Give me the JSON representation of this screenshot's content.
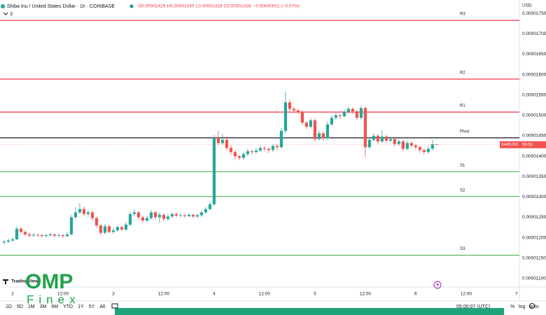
{
  "chart_data": {
    "type": "candlestick",
    "title": "Shiba Inu / United States Dollar · 1h · COINBASE",
    "ohlc_header": [
      "O0.00001429",
      "H0.00001430",
      "L0.00001428",
      "C0.00001428"
    ],
    "change": "−0.00000001 (−0.07%)",
    "indicator_count": "3",
    "currency": "USD",
    "up_color": "#26a69a",
    "down_color": "#ef5350",
    "grid": false,
    "ylim": [
      1.079e-05,
      1.783e-05
    ],
    "yticks": [
      {
        "value": 1.1e-05,
        "label": "0.00001100"
      },
      {
        "value": 1.15e-05,
        "label": "0.00001150"
      },
      {
        "value": 1.2e-05,
        "label": "0.00001200"
      },
      {
        "value": 1.25e-05,
        "label": "0.00001250"
      },
      {
        "value": 1.3e-05,
        "label": "0.00001300"
      },
      {
        "value": 1.35e-05,
        "label": "0.00001350"
      },
      {
        "value": 1.4e-05,
        "label": "0.00001400"
      },
      {
        "value": 1.45e-05,
        "label": "0.00001450"
      },
      {
        "value": 1.5e-05,
        "label": "0.00001500"
      },
      {
        "value": 1.55e-05,
        "label": "0.00001550"
      },
      {
        "value": 1.6e-05,
        "label": "0.00001600"
      },
      {
        "value": 1.65e-05,
        "label": "0.00001650"
      },
      {
        "value": 1.7e-05,
        "label": "0.00001700"
      },
      {
        "value": 1.75e-05,
        "label": "0.00001750"
      }
    ],
    "xlim": [
      -3,
      120.7
    ],
    "xticks": [
      {
        "value": 0,
        "label": "2"
      },
      {
        "value": 12,
        "label": "12:00"
      },
      {
        "value": 24,
        "label": "3"
      },
      {
        "value": 36,
        "label": "12:00"
      },
      {
        "value": 48,
        "label": "4"
      },
      {
        "value": 60,
        "label": "12:00"
      },
      {
        "value": 72,
        "label": "5"
      },
      {
        "value": 84,
        "label": "12:00"
      },
      {
        "value": 96,
        "label": "6"
      },
      {
        "value": 108,
        "label": "12:00"
      },
      {
        "value": 120,
        "label": "7"
      }
    ],
    "levels": [
      {
        "name": "R3",
        "value": 1.733e-05,
        "color": "#f23645"
      },
      {
        "name": "R2",
        "value": 1.589e-05,
        "color": "#f23645"
      },
      {
        "name": "R1",
        "value": 1.508e-05,
        "color": "#f23645"
      },
      {
        "name": "Pivot",
        "value": 1.445e-05,
        "color": "#131722"
      },
      {
        "name": "S1",
        "value": 1.362e-05,
        "color": "#4caf50"
      },
      {
        "name": "S2",
        "value": 1.301e-05,
        "color": "#4caf50"
      },
      {
        "name": "S3",
        "value": 1.157e-05,
        "color": "#4caf50"
      }
    ],
    "price_tag": {
      "symbol": "SHIBUSD",
      "countdown": "59:53"
    },
    "x": [
      -2,
      -1,
      0,
      1,
      2,
      3,
      4,
      5,
      6,
      7,
      8,
      9,
      10,
      11,
      12,
      13,
      14,
      15,
      16,
      17,
      18,
      19,
      20,
      21,
      22,
      23,
      24,
      25,
      26,
      27,
      28,
      29,
      30,
      31,
      32,
      33,
      34,
      35,
      36,
      37,
      38,
      39,
      40,
      41,
      42,
      43,
      44,
      45,
      46,
      47,
      48,
      49,
      50,
      51,
      52,
      53,
      54,
      55,
      56,
      57,
      58,
      59,
      60,
      61,
      62,
      63,
      64,
      65,
      66,
      67,
      68,
      69,
      70,
      71,
      72,
      73,
      74,
      75,
      76,
      77,
      78,
      79,
      80,
      81,
      82,
      83,
      84,
      85,
      86,
      87,
      88,
      89,
      90,
      91,
      92,
      93,
      94,
      95,
      96,
      97,
      98,
      99,
      100,
      101
    ],
    "ohlc": [
      [
        1.188e-05,
        1.194e-05,
        1.184e-05,
        1.19e-05
      ],
      [
        1.19e-05,
        1.198e-05,
        1.187e-05,
        1.193e-05
      ],
      [
        1.193e-05,
        1.2e-05,
        1.19e-05,
        1.196e-05
      ],
      [
        1.196e-05,
        1.228e-05,
        1.194e-05,
        1.222e-05
      ],
      [
        1.222e-05,
        1.226e-05,
        1.21e-05,
        1.214e-05
      ],
      [
        1.214e-05,
        1.218e-05,
        1.204e-05,
        1.208e-05
      ],
      [
        1.208e-05,
        1.212e-05,
        1.201e-05,
        1.205e-05
      ],
      [
        1.205e-05,
        1.211e-05,
        1.202e-05,
        1.207e-05
      ],
      [
        1.207e-05,
        1.21e-05,
        1.202e-05,
        1.206e-05
      ],
      [
        1.206e-05,
        1.209e-05,
        1.2e-05,
        1.204e-05
      ],
      [
        1.204e-05,
        1.21e-05,
        1.201e-05,
        1.206e-05
      ],
      [
        1.206e-05,
        1.212e-05,
        1.203e-05,
        1.208e-05
      ],
      [
        1.208e-05,
        1.211e-05,
        1.201e-05,
        1.205e-05
      ],
      [
        1.205e-05,
        1.21e-05,
        1.202e-05,
        1.206e-05
      ],
      [
        1.206e-05,
        1.209e-05,
        1.199e-05,
        1.204e-05
      ],
      [
        1.204e-05,
        1.214e-05,
        1.201e-05,
        1.208e-05
      ],
      [
        1.208e-05,
        1.256e-05,
        1.205e-05,
        1.25e-05
      ],
      [
        1.25e-05,
        1.275e-05,
        1.246e-05,
        1.262e-05
      ],
      [
        1.262e-05,
        1.285e-05,
        1.258e-05,
        1.27e-05
      ],
      [
        1.27e-05,
        1.276e-05,
        1.252e-05,
        1.258e-05
      ],
      [
        1.258e-05,
        1.268e-05,
        1.252e-05,
        1.262e-05
      ],
      [
        1.262e-05,
        1.266e-05,
        1.242e-05,
        1.248e-05
      ],
      [
        1.248e-05,
        1.252e-05,
        1.224e-05,
        1.23e-05
      ],
      [
        1.23e-05,
        1.234e-05,
        1.206e-05,
        1.212e-05
      ],
      [
        1.212e-05,
        1.234e-05,
        1.208e-05,
        1.228e-05
      ],
      [
        1.228e-05,
        1.232e-05,
        1.21e-05,
        1.214e-05
      ],
      [
        1.214e-05,
        1.224e-05,
        1.21e-05,
        1.218e-05
      ],
      [
        1.218e-05,
        1.23e-05,
        1.214e-05,
        1.226e-05
      ],
      [
        1.226e-05,
        1.23e-05,
        1.216e-05,
        1.22e-05
      ],
      [
        1.22e-05,
        1.238e-05,
        1.216e-05,
        1.232e-05
      ],
      [
        1.232e-05,
        1.264e-05,
        1.228e-05,
        1.258e-05
      ],
      [
        1.258e-05,
        1.27e-05,
        1.252e-05,
        1.262e-05
      ],
      [
        1.262e-05,
        1.266e-05,
        1.244e-05,
        1.25e-05
      ],
      [
        1.25e-05,
        1.254e-05,
        1.236e-05,
        1.242e-05
      ],
      [
        1.242e-05,
        1.254e-05,
        1.238e-05,
        1.248e-05
      ],
      [
        1.248e-05,
        1.268e-05,
        1.244e-05,
        1.262e-05
      ],
      [
        1.262e-05,
        1.266e-05,
        1.244e-05,
        1.25e-05
      ],
      [
        1.25e-05,
        1.262e-05,
        1.236e-05,
        1.256e-05
      ],
      [
        1.256e-05,
        1.26e-05,
        1.24e-05,
        1.246e-05
      ],
      [
        1.246e-05,
        1.258e-05,
        1.242e-05,
        1.252e-05
      ],
      [
        1.252e-05,
        1.262e-05,
        1.248e-05,
        1.258e-05
      ],
      [
        1.258e-05,
        1.262e-05,
        1.25e-05,
        1.254e-05
      ],
      [
        1.254e-05,
        1.259e-05,
        1.25e-05,
        1.255e-05
      ],
      [
        1.255e-05,
        1.258e-05,
        1.249e-05,
        1.253e-05
      ],
      [
        1.253e-05,
        1.26e-05,
        1.25e-05,
        1.256e-05
      ],
      [
        1.256e-05,
        1.259e-05,
        1.248e-05,
        1.252e-05
      ],
      [
        1.252e-05,
        1.259e-05,
        1.248e-05,
        1.255e-05
      ],
      [
        1.255e-05,
        1.266e-05,
        1.251e-05,
        1.262e-05
      ],
      [
        1.262e-05,
        1.275e-05,
        1.258e-05,
        1.27e-05
      ],
      [
        1.27e-05,
        1.288e-05,
        1.266e-05,
        1.282e-05
      ],
      [
        1.282e-05,
        1.452e-05,
        1.278e-05,
        1.445e-05
      ],
      [
        1.445e-05,
        1.462e-05,
        1.426e-05,
        1.432e-05
      ],
      [
        1.432e-05,
        1.455e-05,
        1.428e-05,
        1.44e-05
      ],
      [
        1.44e-05,
        1.448e-05,
        1.414e-05,
        1.42e-05
      ],
      [
        1.42e-05,
        1.426e-05,
        1.404e-05,
        1.41e-05
      ],
      [
        1.41e-05,
        1.414e-05,
        1.392e-05,
        1.4e-05
      ],
      [
        1.4e-05,
        1.404e-05,
        1.39e-05,
        1.396e-05
      ],
      [
        1.396e-05,
        1.41e-05,
        1.392e-05,
        1.405e-05
      ],
      [
        1.405e-05,
        1.418e-05,
        1.4e-05,
        1.412e-05
      ],
      [
        1.412e-05,
        1.416e-05,
        1.404e-05,
        1.41e-05
      ],
      [
        1.41e-05,
        1.42e-05,
        1.406e-05,
        1.414e-05
      ],
      [
        1.414e-05,
        1.426e-05,
        1.41e-05,
        1.42e-05
      ],
      [
        1.42e-05,
        1.424e-05,
        1.412e-05,
        1.418e-05
      ],
      [
        1.418e-05,
        1.422e-05,
        1.408e-05,
        1.415e-05
      ],
      [
        1.415e-05,
        1.43e-05,
        1.41e-05,
        1.425e-05
      ],
      [
        1.425e-05,
        1.43e-05,
        1.414e-05,
        1.422e-05
      ],
      [
        1.422e-05,
        1.468e-05,
        1.418e-05,
        1.462e-05
      ],
      [
        1.462e-05,
        1.558e-05,
        1.456e-05,
        1.532e-05
      ],
      [
        1.532e-05,
        1.54e-05,
        1.51e-05,
        1.516e-05
      ],
      [
        1.516e-05,
        1.52e-05,
        1.506e-05,
        1.512e-05
      ],
      [
        1.512e-05,
        1.516e-05,
        1.502e-05,
        1.508e-05
      ],
      [
        1.508e-05,
        1.512e-05,
        1.476e-05,
        1.482e-05
      ],
      [
        1.482e-05,
        1.486e-05,
        1.466e-05,
        1.472e-05
      ],
      [
        1.472e-05,
        1.494e-05,
        1.468e-05,
        1.488e-05
      ],
      [
        1.488e-05,
        1.492e-05,
        1.436e-05,
        1.442e-05
      ],
      [
        1.442e-05,
        1.462e-05,
        1.438e-05,
        1.456e-05
      ],
      [
        1.456e-05,
        1.46e-05,
        1.438e-05,
        1.444e-05
      ],
      [
        1.444e-05,
        1.484e-05,
        1.44e-05,
        1.478e-05
      ],
      [
        1.478e-05,
        1.5e-05,
        1.474e-05,
        1.494e-05
      ],
      [
        1.494e-05,
        1.506e-05,
        1.49e-05,
        1.5e-05
      ],
      [
        1.5e-05,
        1.504e-05,
        1.492e-05,
        1.498e-05
      ],
      [
        1.498e-05,
        1.514e-05,
        1.494e-05,
        1.508e-05
      ],
      [
        1.508e-05,
        1.522e-05,
        1.504e-05,
        1.516e-05
      ],
      [
        1.516e-05,
        1.52e-05,
        1.504e-05,
        1.51e-05
      ],
      [
        1.51e-05,
        1.514e-05,
        1.488e-05,
        1.494e-05
      ],
      [
        1.494e-05,
        1.524e-05,
        1.49e-05,
        1.518e-05
      ],
      [
        1.518e-05,
        1.522e-05,
        1.398e-05,
        1.422e-05
      ],
      [
        1.422e-05,
        1.446e-05,
        1.418e-05,
        1.44e-05
      ],
      [
        1.44e-05,
        1.456e-05,
        1.436e-05,
        1.45e-05
      ],
      [
        1.45e-05,
        1.454e-05,
        1.43e-05,
        1.436e-05
      ],
      [
        1.436e-05,
        1.464e-05,
        1.432e-05,
        1.448e-05
      ],
      [
        1.448e-05,
        1.452e-05,
        1.432e-05,
        1.438e-05
      ],
      [
        1.438e-05,
        1.448e-05,
        1.434e-05,
        1.442e-05
      ],
      [
        1.442e-05,
        1.446e-05,
        1.424e-05,
        1.43e-05
      ],
      [
        1.43e-05,
        1.442e-05,
        1.426e-05,
        1.436e-05
      ],
      [
        1.436e-05,
        1.44e-05,
        1.412e-05,
        1.418e-05
      ],
      [
        1.418e-05,
        1.438e-05,
        1.414e-05,
        1.432e-05
      ],
      [
        1.432e-05,
        1.436e-05,
        1.42e-05,
        1.426e-05
      ],
      [
        1.426e-05,
        1.43e-05,
        1.416e-05,
        1.422e-05
      ],
      [
        1.422e-05,
        1.426e-05,
        1.408e-05,
        1.415e-05
      ],
      [
        1.415e-05,
        1.418e-05,
        1.404e-05,
        1.41e-05
      ],
      [
        1.41e-05,
        1.424e-05,
        1.406e-05,
        1.418e-05
      ],
      [
        1.418e-05,
        1.44e-05,
        1.414e-05,
        1.429e-05
      ],
      [
        1.429e-05,
        1.43e-05,
        1.428e-05,
        1.428e-05
      ]
    ]
  },
  "branding": {
    "logo": "TradingView",
    "watermark": [
      "OMP",
      "Finex"
    ]
  },
  "toolbar": {
    "ranges": [
      "1D",
      "5D",
      "1M",
      "3M",
      "6M",
      "YTD",
      "1Y",
      "5Y",
      "All"
    ],
    "time": "05:00:07 (UTC)",
    "options": [
      "%",
      "log",
      "auto"
    ]
  }
}
